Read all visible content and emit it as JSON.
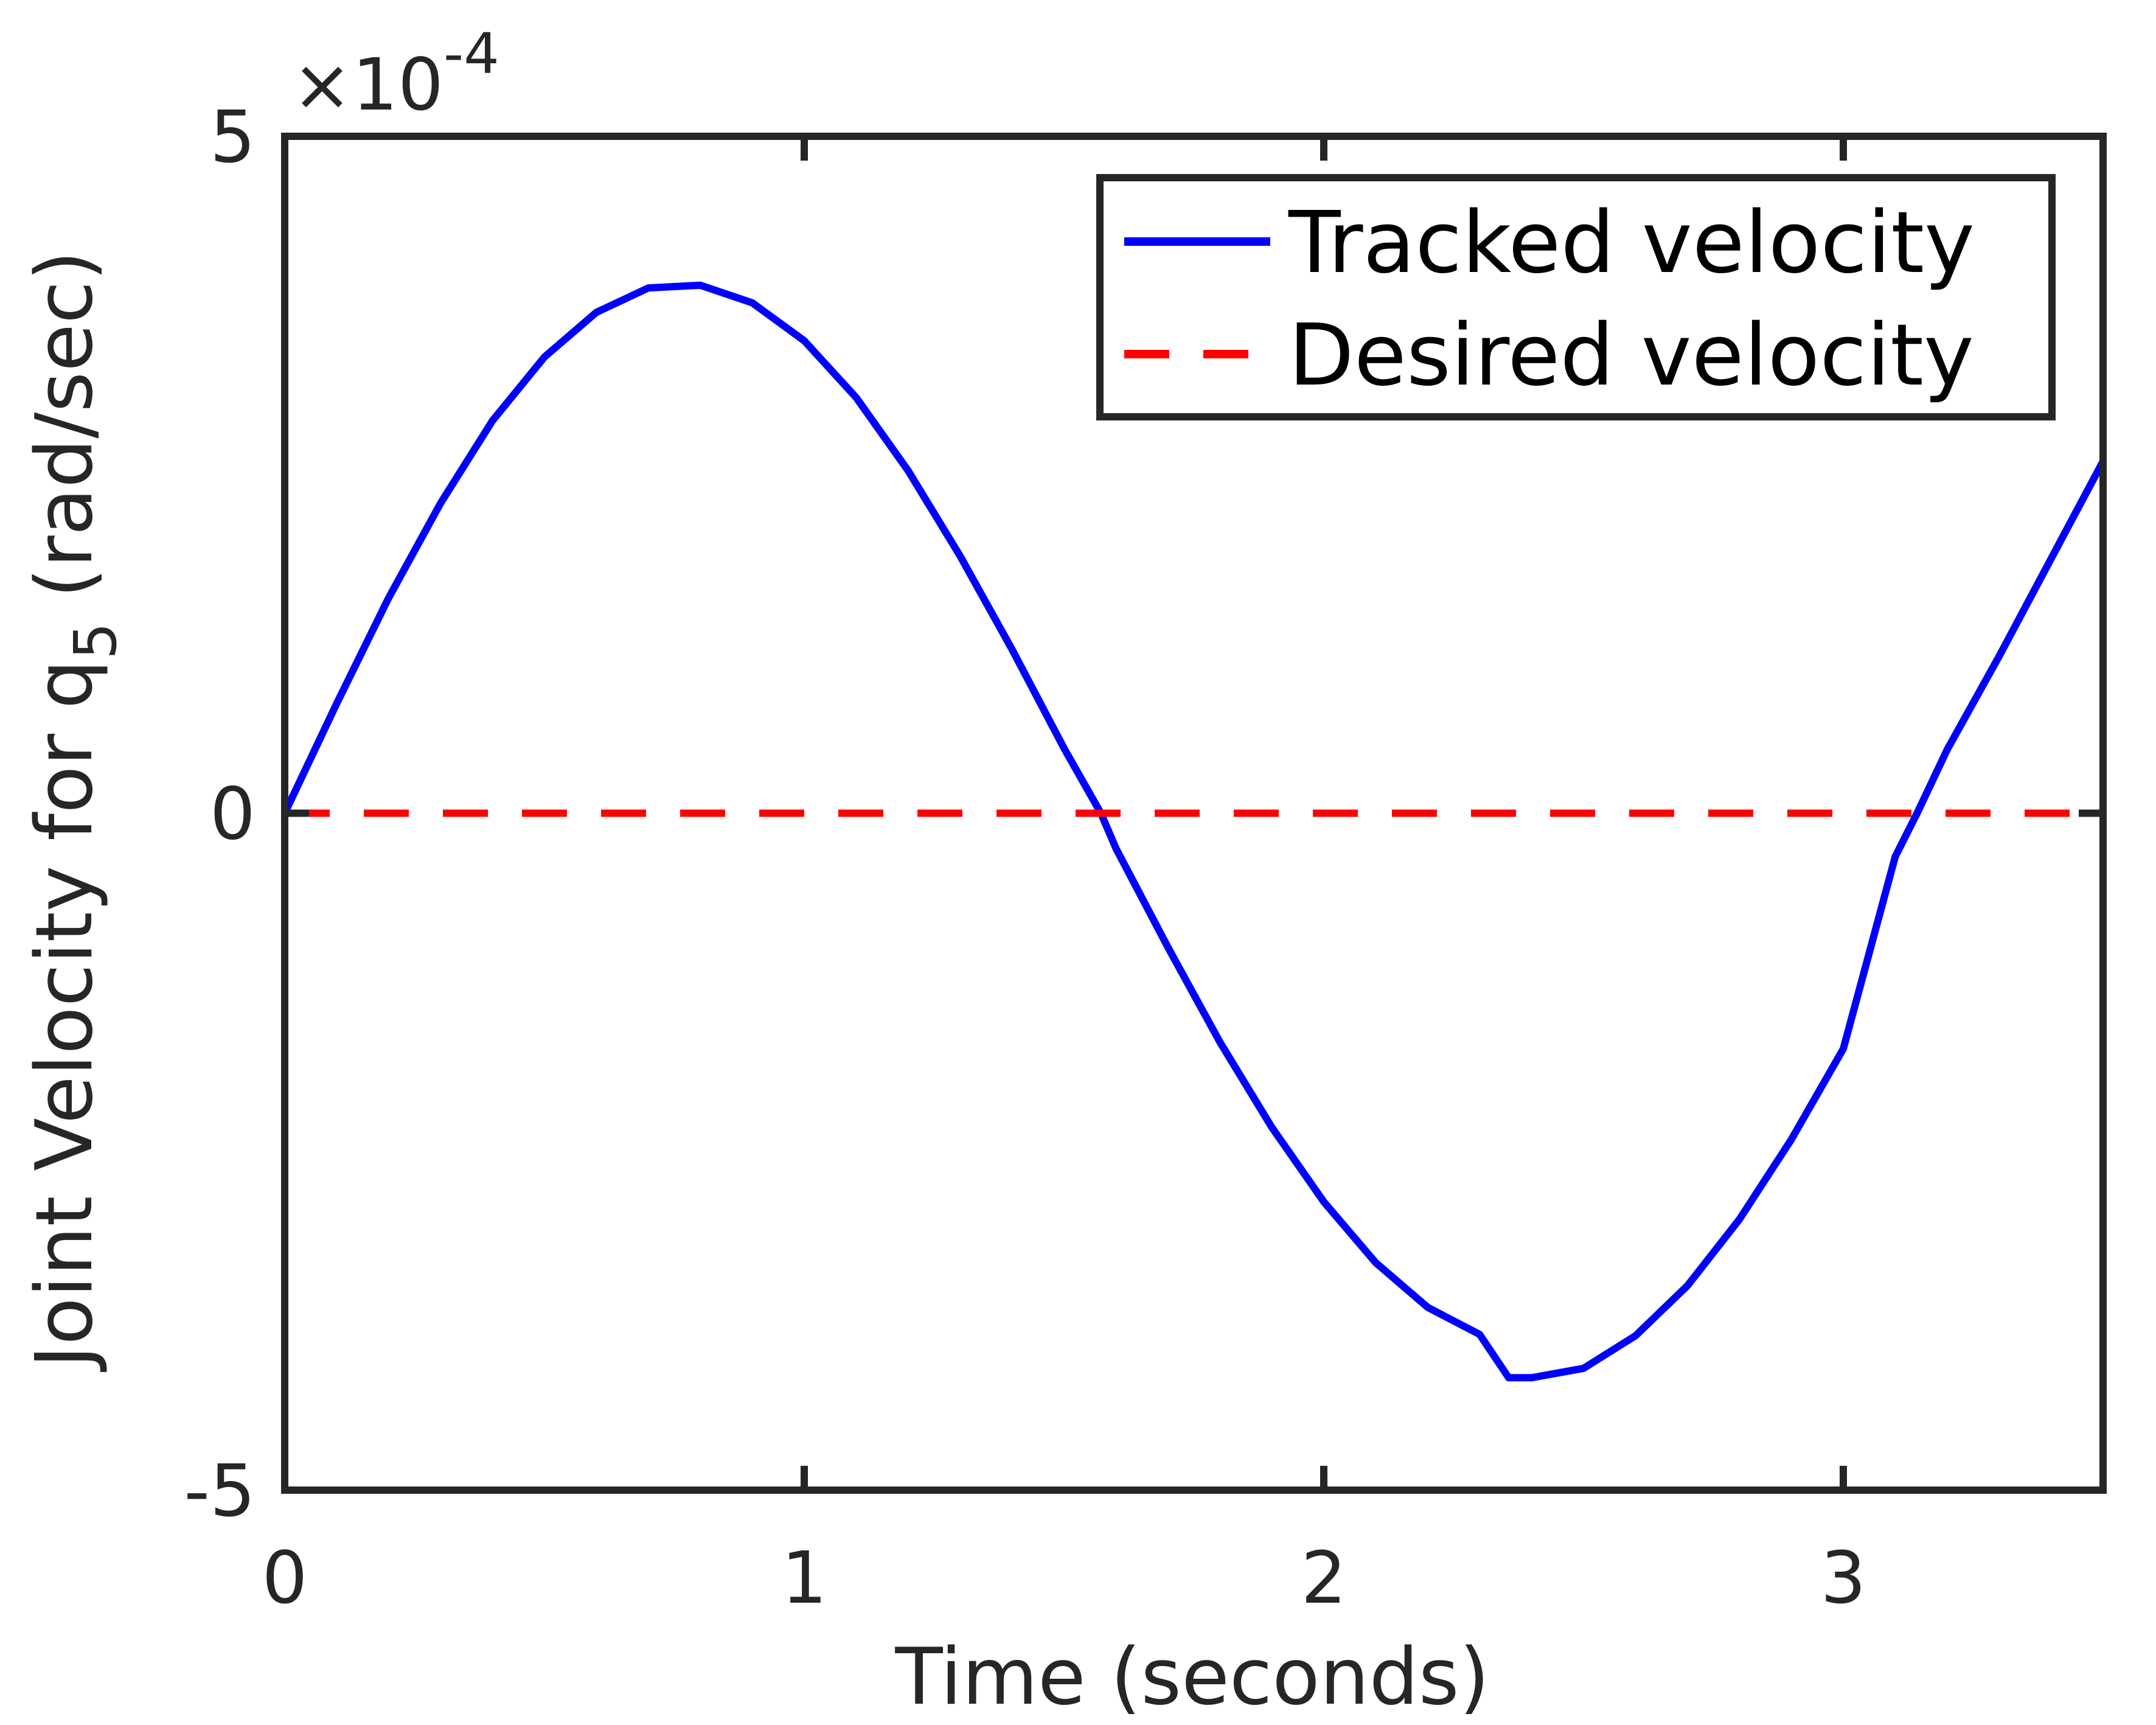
{
  "chart_data": {
    "type": "line",
    "xlabel": "Time (seconds)",
    "ylabel_main": "Joint Velocity for q",
    "ylabel_sub": "5",
    "ylabel_unit": "(rad/sec)",
    "y_multiplier_base": "×10",
    "y_multiplier_exp": "-4",
    "xlim": [
      0,
      3.5
    ],
    "ylim": [
      -5,
      5
    ],
    "x_ticks": [
      0,
      1,
      2,
      3
    ],
    "x_tick_labels": [
      "0",
      "1",
      "2",
      "3"
    ],
    "y_ticks": [
      -5,
      0,
      5
    ],
    "y_tick_labels": [
      "-5",
      "0",
      "5"
    ],
    "grid": false,
    "legend_position": "top-right",
    "series": [
      {
        "name": "Tracked velocity",
        "style": "solid",
        "color": "#0000ff",
        "x": [
          0,
          0.1,
          0.2,
          0.3,
          0.4,
          0.5,
          0.6,
          0.7,
          0.8,
          0.9,
          1.0,
          1.1,
          1.2,
          1.3,
          1.4,
          1.5,
          1.571,
          1.6,
          1.7,
          1.8,
          1.9,
          2.0,
          2.1,
          2.2,
          2.3,
          2.356,
          2.4,
          2.5,
          2.6,
          2.7,
          2.8,
          2.9,
          3.0,
          3.1,
          3.142,
          3.2,
          3.3,
          3.4,
          3.5
        ],
        "y": [
          0,
          0.81,
          1.59,
          2.29,
          2.9,
          3.37,
          3.7,
          3.88,
          3.9,
          3.77,
          3.49,
          3.07,
          2.53,
          1.9,
          1.21,
          0.48,
          0,
          -0.26,
          -0.99,
          -1.69,
          -2.32,
          -2.87,
          -3.32,
          -3.65,
          -3.85,
          -4.17,
          -4.17,
          -4.1,
          -3.86,
          -3.49,
          -3.0,
          -2.41,
          -1.74,
          -0.32,
          0,
          0.47,
          1.16,
          1.88,
          2.6
        ]
      },
      {
        "name": "Desired velocity",
        "style": "dashed",
        "color": "#ff0000",
        "x": [
          0,
          3.5
        ],
        "y": [
          0,
          0
        ]
      }
    ]
  }
}
